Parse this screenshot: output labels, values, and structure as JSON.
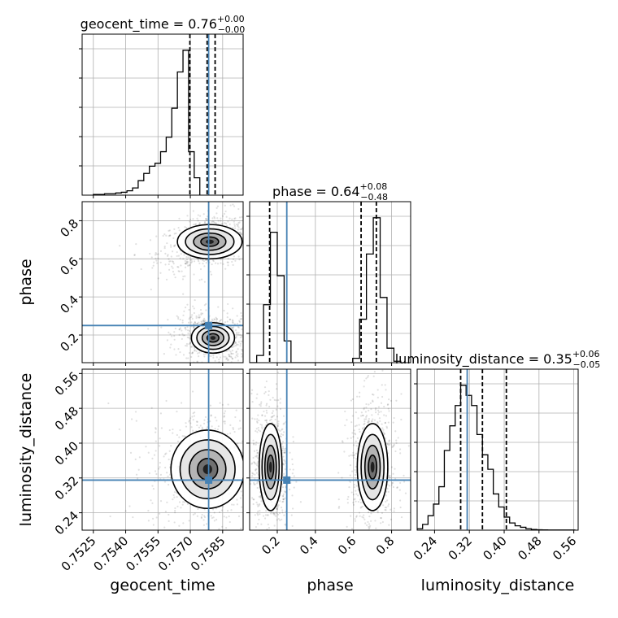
{
  "chart_data": {
    "type": "corner",
    "params": [
      "geocent_time",
      "phase",
      "luminosity_distance"
    ],
    "truth_color": "#4682b4",
    "hist_color": "#000000",
    "titles": [
      {
        "param": "geocent_time",
        "text": "geocent_time = 0.76",
        "sup": "+0.00",
        "sub": "−0.00"
      },
      {
        "param": "phase",
        "text": "phase = 0.64",
        "sup": "+0.08",
        "sub": "−0.48"
      },
      {
        "param": "luminosity_distance",
        "text": "luminosity_distance = 0.35",
        "sup": "+0.06",
        "sub": "−0.05"
      }
    ],
    "axes": {
      "geocent_time": {
        "label": "geocent_time",
        "range": [
          0.75198,
          0.75945
        ],
        "ticks": [
          0.7525,
          0.754,
          0.7555,
          0.757,
          0.7585
        ],
        "tick_labels": [
          "0.7525",
          "0.7540",
          "0.7555",
          "0.7570",
          "0.7585"
        ]
      },
      "phase": {
        "label": "phase",
        "range": [
          0.055,
          0.9
        ],
        "ticks": [
          0.2,
          0.4,
          0.6,
          0.8
        ],
        "tick_labels": [
          "0.2",
          "0.4",
          "0.6",
          "0.8"
        ]
      },
      "luminosity_distance": {
        "label": "luminosity_distance",
        "range": [
          0.2,
          0.57
        ],
        "ticks": [
          0.24,
          0.32,
          0.4,
          0.48,
          0.56
        ],
        "tick_labels": [
          "0.24",
          "0.32",
          "0.40",
          "0.48",
          "0.56"
        ]
      }
    },
    "truths": {
      "geocent_time": 0.75785,
      "phase": 0.25,
      "luminosity_distance": 0.315
    },
    "quantiles": {
      "geocent_time": [
        0.75698,
        0.75778,
        0.75815
      ],
      "phase": [
        0.16,
        0.64,
        0.72
      ],
      "luminosity_distance": [
        0.3,
        0.35,
        0.405
      ]
    },
    "histograms": {
      "geocent_time": {
        "bin_width": 0.00026,
        "bin_start": 0.7525,
        "counts": [
          0.5,
          0.5,
          1,
          1,
          1.5,
          2,
          3,
          5,
          10,
          15,
          20,
          22,
          30,
          40,
          60,
          85,
          100,
          30,
          12
        ]
      },
      "phase": {
        "bin_width": 0.036,
        "bin_start": 0.056,
        "counts": [
          0,
          5,
          40,
          90,
          60,
          15,
          0,
          0,
          0,
          0,
          0,
          0,
          0,
          0,
          0,
          3,
          30,
          75,
          100,
          45,
          10,
          1
        ]
      },
      "luminosity_distance": {
        "bin_width": 0.0125,
        "bin_start": 0.2,
        "counts": [
          1,
          4,
          10,
          18,
          30,
          55,
          72,
          86,
          100,
          93,
          86,
          66,
          52,
          42,
          25,
          16,
          9,
          5,
          3,
          2,
          1,
          0.5,
          0.3,
          0.2,
          0.1,
          0.1,
          0.1,
          0.1,
          0.1
        ]
      }
    },
    "contours_2d": [
      {
        "x": "geocent_time",
        "y": "phase",
        "modes": [
          {
            "cx": 0.7579,
            "cy": 0.69,
            "sx": 0.00075,
            "sy": 0.045,
            "slope": 0.03
          },
          {
            "cx": 0.75805,
            "cy": 0.185,
            "sx": 0.0005,
            "sy": 0.04,
            "slope": -0.01
          }
        ]
      },
      {
        "x": "geocent_time",
        "y": "luminosity_distance",
        "modes": [
          {
            "cx": 0.7578,
            "cy": 0.34,
            "sx": 0.00085,
            "sy": 0.045,
            "slope": 0
          }
        ]
      },
      {
        "x": "phase",
        "y": "luminosity_distance",
        "modes": [
          {
            "cx": 0.165,
            "cy": 0.345,
            "sx": 0.03,
            "sy": 0.05,
            "slope": 0
          },
          {
            "cx": 0.7,
            "cy": 0.345,
            "sx": 0.04,
            "sy": 0.05,
            "slope": 0
          }
        ]
      }
    ],
    "grid": true
  }
}
